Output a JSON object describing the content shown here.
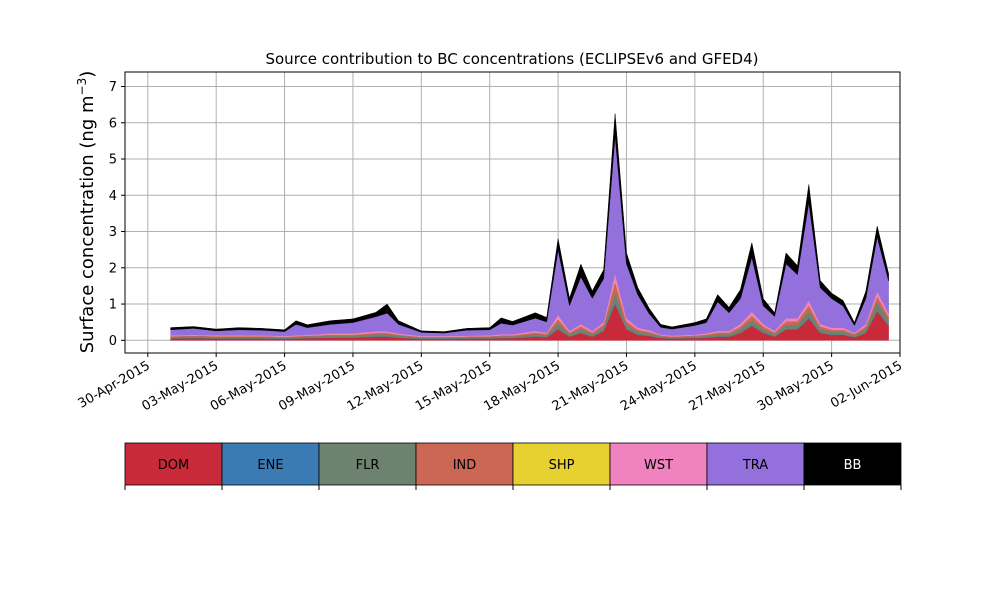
{
  "chart_data": {
    "type": "area",
    "title": "Source contribution to BC concentrations (ECLIPSEv6 and GFED4)",
    "ylabel_main": "Surface concentration (ng m",
    "ylabel_exp": "−3",
    "ylabel_close": ")",
    "xlabel": "",
    "ylim": [
      -0.35,
      7.4
    ],
    "yticks": [
      0,
      1,
      2,
      3,
      4,
      5,
      6,
      7
    ],
    "xlim": [
      "2015-04-29",
      "2015-06-02"
    ],
    "xticks": [
      "30-Apr-2015",
      "03-May-2015",
      "06-May-2015",
      "09-May-2015",
      "12-May-2015",
      "15-May-2015",
      "18-May-2015",
      "21-May-2015",
      "24-May-2015",
      "27-May-2015",
      "30-May-2015",
      "02-Jun-2015"
    ],
    "grid": true,
    "x": [
      "2015-05-01",
      "2015-05-02",
      "2015-05-03",
      "2015-05-04",
      "2015-05-05",
      "2015-05-06",
      "2015-05-06T12",
      "2015-05-07",
      "2015-05-08",
      "2015-05-09",
      "2015-05-10",
      "2015-05-10T12",
      "2015-05-11",
      "2015-05-12",
      "2015-05-13",
      "2015-05-14",
      "2015-05-15",
      "2015-05-15T12",
      "2015-05-16",
      "2015-05-17",
      "2015-05-17T12",
      "2015-05-18",
      "2015-05-18T12",
      "2015-05-19",
      "2015-05-19T12",
      "2015-05-20",
      "2015-05-20T12",
      "2015-05-21",
      "2015-05-21T12",
      "2015-05-22",
      "2015-05-22T12",
      "2015-05-23",
      "2015-05-24",
      "2015-05-24T12",
      "2015-05-25",
      "2015-05-25T12",
      "2015-05-26",
      "2015-05-26T12",
      "2015-05-27",
      "2015-05-27T12",
      "2015-05-28",
      "2015-05-28T12",
      "2015-05-29",
      "2015-05-29T12",
      "2015-05-30",
      "2015-05-30T12",
      "2015-05-31",
      "2015-05-31T12",
      "2015-06-01",
      "2015-06-01T12"
    ],
    "series": [
      {
        "name": "DOM",
        "color": "#c92a39",
        "values": [
          0.05,
          0.06,
          0.05,
          0.05,
          0.05,
          0.04,
          0.05,
          0.06,
          0.07,
          0.07,
          0.1,
          0.1,
          0.07,
          0.04,
          0.04,
          0.05,
          0.05,
          0.06,
          0.06,
          0.1,
          0.08,
          0.3,
          0.1,
          0.2,
          0.1,
          0.25,
          1.0,
          0.3,
          0.15,
          0.12,
          0.06,
          0.05,
          0.06,
          0.07,
          0.1,
          0.1,
          0.2,
          0.4,
          0.2,
          0.1,
          0.3,
          0.3,
          0.6,
          0.2,
          0.15,
          0.15,
          0.08,
          0.2,
          0.8,
          0.4
        ]
      },
      {
        "name": "ENE",
        "color": "#3a7bb3",
        "values": [
          0.01,
          0.01,
          0.01,
          0.01,
          0.01,
          0.01,
          0.01,
          0.01,
          0.01,
          0.01,
          0.01,
          0.01,
          0.01,
          0.01,
          0.01,
          0.01,
          0.01,
          0.01,
          0.01,
          0.01,
          0.01,
          0.02,
          0.01,
          0.01,
          0.01,
          0.01,
          0.03,
          0.01,
          0.01,
          0.01,
          0.01,
          0.01,
          0.01,
          0.01,
          0.01,
          0.01,
          0.01,
          0.01,
          0.01,
          0.01,
          0.01,
          0.01,
          0.02,
          0.01,
          0.01,
          0.01,
          0.01,
          0.01,
          0.02,
          0.01
        ]
      },
      {
        "name": "FLR",
        "color": "#6e8270",
        "values": [
          0.04,
          0.04,
          0.04,
          0.04,
          0.04,
          0.03,
          0.04,
          0.04,
          0.05,
          0.05,
          0.06,
          0.06,
          0.05,
          0.03,
          0.03,
          0.03,
          0.04,
          0.04,
          0.04,
          0.06,
          0.05,
          0.15,
          0.06,
          0.1,
          0.06,
          0.1,
          0.3,
          0.12,
          0.08,
          0.06,
          0.04,
          0.03,
          0.04,
          0.05,
          0.06,
          0.06,
          0.1,
          0.15,
          0.1,
          0.06,
          0.12,
          0.12,
          0.2,
          0.1,
          0.08,
          0.08,
          0.05,
          0.1,
          0.25,
          0.15
        ]
      },
      {
        "name": "IND",
        "color": "#cc6655",
        "values": [
          0.02,
          0.02,
          0.02,
          0.02,
          0.02,
          0.02,
          0.02,
          0.02,
          0.03,
          0.03,
          0.04,
          0.04,
          0.03,
          0.02,
          0.02,
          0.02,
          0.02,
          0.03,
          0.03,
          0.05,
          0.04,
          0.12,
          0.05,
          0.08,
          0.05,
          0.08,
          0.3,
          0.1,
          0.06,
          0.05,
          0.03,
          0.02,
          0.03,
          0.03,
          0.05,
          0.05,
          0.08,
          0.12,
          0.08,
          0.05,
          0.1,
          0.1,
          0.15,
          0.08,
          0.06,
          0.06,
          0.04,
          0.08,
          0.15,
          0.1
        ]
      },
      {
        "name": "SHP",
        "color": "#e6d130",
        "values": [
          0.0,
          0.0,
          0.0,
          0.0,
          0.0,
          0.0,
          0.0,
          0.0,
          0.0,
          0.0,
          0.0,
          0.0,
          0.0,
          0.0,
          0.0,
          0.0,
          0.0,
          0.0,
          0.0,
          0.0,
          0.0,
          0.01,
          0.0,
          0.0,
          0.0,
          0.0,
          0.02,
          0.0,
          0.0,
          0.0,
          0.0,
          0.0,
          0.0,
          0.0,
          0.0,
          0.0,
          0.0,
          0.01,
          0.0,
          0.0,
          0.0,
          0.0,
          0.01,
          0.0,
          0.0,
          0.0,
          0.0,
          0.0,
          0.01,
          0.0
        ]
      },
      {
        "name": "WST",
        "color": "#f082bf",
        "values": [
          0.02,
          0.02,
          0.02,
          0.02,
          0.02,
          0.02,
          0.02,
          0.02,
          0.03,
          0.03,
          0.04,
          0.04,
          0.03,
          0.02,
          0.02,
          0.02,
          0.02,
          0.03,
          0.03,
          0.04,
          0.03,
          0.1,
          0.04,
          0.06,
          0.04,
          0.06,
          0.2,
          0.08,
          0.05,
          0.04,
          0.02,
          0.02,
          0.02,
          0.03,
          0.04,
          0.04,
          0.06,
          0.1,
          0.06,
          0.04,
          0.08,
          0.08,
          0.12,
          0.06,
          0.05,
          0.05,
          0.03,
          0.06,
          0.12,
          0.08
        ]
      },
      {
        "name": "TRA",
        "color": "#9370db",
        "values": [
          0.15,
          0.18,
          0.12,
          0.15,
          0.14,
          0.12,
          0.3,
          0.2,
          0.25,
          0.3,
          0.4,
          0.5,
          0.25,
          0.1,
          0.08,
          0.15,
          0.15,
          0.3,
          0.25,
          0.35,
          0.3,
          1.8,
          0.7,
          1.3,
          0.9,
          1.2,
          3.8,
          1.5,
          0.9,
          0.45,
          0.2,
          0.18,
          0.25,
          0.3,
          0.8,
          0.5,
          0.7,
          1.5,
          0.5,
          0.4,
          1.5,
          1.2,
          2.7,
          1.0,
          0.8,
          0.6,
          0.2,
          0.7,
          1.5,
          0.9
        ]
      },
      {
        "name": "BB",
        "color": "#000000",
        "values": [
          0.06,
          0.05,
          0.05,
          0.06,
          0.05,
          0.05,
          0.1,
          0.08,
          0.1,
          0.1,
          0.12,
          0.25,
          0.1,
          0.04,
          0.04,
          0.05,
          0.06,
          0.15,
          0.1,
          0.15,
          0.12,
          0.3,
          0.2,
          0.35,
          0.2,
          0.25,
          0.6,
          0.3,
          0.2,
          0.15,
          0.08,
          0.06,
          0.08,
          0.1,
          0.2,
          0.15,
          0.25,
          0.4,
          0.2,
          0.1,
          0.3,
          0.25,
          0.5,
          0.2,
          0.15,
          0.15,
          0.08,
          0.2,
          0.3,
          0.2
        ]
      }
    ],
    "legend": [
      {
        "label": "DOM",
        "color": "#c92a39",
        "text_color": "#000000"
      },
      {
        "label": "ENE",
        "color": "#3a7bb3",
        "text_color": "#000000"
      },
      {
        "label": "FLR",
        "color": "#6e8270",
        "text_color": "#000000"
      },
      {
        "label": "IND",
        "color": "#cc6655",
        "text_color": "#000000"
      },
      {
        "label": "SHP",
        "color": "#e6d130",
        "text_color": "#000000"
      },
      {
        "label": "WST",
        "color": "#f082bf",
        "text_color": "#000000"
      },
      {
        "label": "TRA",
        "color": "#9370db",
        "text_color": "#000000"
      },
      {
        "label": "BB",
        "color": "#000000",
        "text_color": "#ffffff"
      }
    ]
  }
}
